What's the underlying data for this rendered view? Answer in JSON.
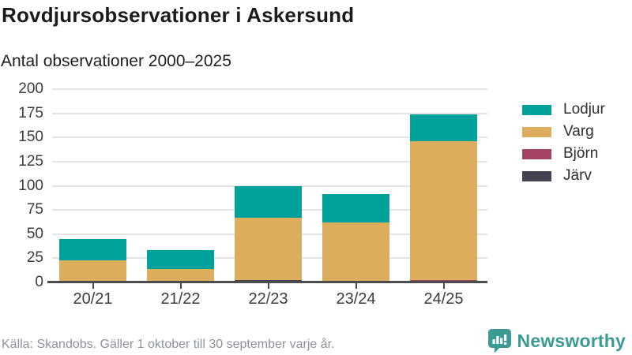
{
  "header": {
    "title": "Rovdjursobservationer i Askersund",
    "subtitle": "Antal observationer 2000–2025"
  },
  "chart_data": {
    "type": "bar",
    "stacked": true,
    "title": "Rovdjursobservationer i Askersund",
    "subtitle": "Antal observationer 2000–2025",
    "categories": [
      "20/21",
      "21/22",
      "22/23",
      "23/24",
      "24/25"
    ],
    "series": [
      {
        "name": "Lodjur",
        "color": "#00a19a",
        "values": [
          22,
          20,
          33,
          30,
          28
        ]
      },
      {
        "name": "Varg",
        "color": "#dbad5c",
        "values": [
          22,
          12,
          64,
          61,
          143
        ]
      },
      {
        "name": "Björn",
        "color": "#a54462",
        "values": [
          0,
          1,
          0,
          0,
          2
        ]
      },
      {
        "name": "Järv",
        "color": "#444153",
        "values": [
          0,
          0,
          2,
          0,
          0
        ]
      }
    ],
    "totals": [
      44,
      33,
      99,
      91,
      173
    ],
    "ylim": [
      0,
      200
    ],
    "yticks": [
      0,
      25,
      50,
      75,
      100,
      125,
      150,
      175,
      200
    ],
    "xlabel": "",
    "ylabel": "",
    "grid": true,
    "legend_position": "right",
    "colors": {
      "grid": "#e4e4e4",
      "axis": "#4c4c4c",
      "text": "#3c3c3c"
    }
  },
  "footer": {
    "source": "Källa: Skandobs. Gäller 1 oktober till 30 september varje år.",
    "brand": "Newsworthy",
    "brand_color": "#3b9a93"
  }
}
